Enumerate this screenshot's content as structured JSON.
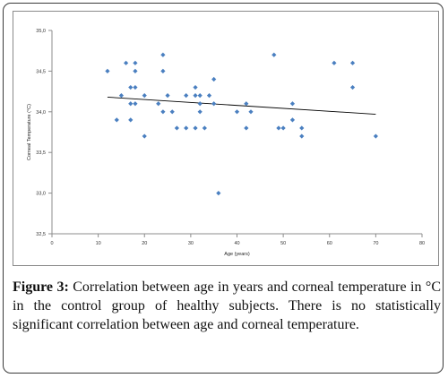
{
  "caption": {
    "label": "Figure 3:",
    "text": " Correlation between age in years and corneal temperature in °C in the control group of healthy subjects. There is no statistically significant correlation between age and corneal temperature."
  },
  "colors": {
    "point": "#4a7fc0",
    "trendline": "#000000",
    "axis": "#8c8c8c",
    "frame": "#3a3a3a"
  },
  "chart_data": {
    "type": "scatter",
    "title": "",
    "xlabel": "Age (years)",
    "ylabel": "Corneal Temperature (°C)",
    "xlim": [
      0,
      80
    ],
    "ylim": [
      32.5,
      35.0
    ],
    "x_ticks": [
      "0",
      "10",
      "20",
      "30",
      "40",
      "50",
      "60",
      "70",
      "80"
    ],
    "y_ticks": [
      "32,5",
      "33,0",
      "33,5",
      "34,0",
      "34,5",
      "35,0"
    ],
    "grid": false,
    "series": [
      {
        "points": [
          [
            12,
            34.5
          ],
          [
            14,
            33.9
          ],
          [
            15,
            34.2
          ],
          [
            16,
            34.6
          ],
          [
            17,
            34.3
          ],
          [
            17,
            33.9
          ],
          [
            17,
            34.1
          ],
          [
            18,
            34.6
          ],
          [
            18,
            34.5
          ],
          [
            18,
            34.3
          ],
          [
            18,
            34.1
          ],
          [
            20,
            34.2
          ],
          [
            20,
            33.7
          ],
          [
            23,
            34.1
          ],
          [
            24,
            34.7
          ],
          [
            24,
            34.5
          ],
          [
            24,
            34.0
          ],
          [
            25,
            34.2
          ],
          [
            26,
            34.0
          ],
          [
            27,
            33.8
          ],
          [
            29,
            34.2
          ],
          [
            29,
            33.8
          ],
          [
            31,
            34.3
          ],
          [
            31,
            33.8
          ],
          [
            31,
            34.2
          ],
          [
            32,
            34.2
          ],
          [
            32,
            34.1
          ],
          [
            32,
            34.0
          ],
          [
            33,
            33.8
          ],
          [
            34,
            34.2
          ],
          [
            35,
            34.4
          ],
          [
            35,
            34.1
          ],
          [
            36,
            33.0
          ],
          [
            40,
            34.0
          ],
          [
            42,
            34.1
          ],
          [
            42,
            33.8
          ],
          [
            43,
            34.0
          ],
          [
            48,
            34.7
          ],
          [
            49,
            33.8
          ],
          [
            50,
            33.8
          ],
          [
            52,
            34.1
          ],
          [
            52,
            33.9
          ],
          [
            54,
            33.7
          ],
          [
            54,
            33.8
          ],
          [
            61,
            34.6
          ],
          [
            65,
            34.6
          ],
          [
            65,
            34.3
          ],
          [
            70,
            33.7
          ]
        ]
      }
    ],
    "trendline": {
      "x": [
        12,
        70
      ],
      "y": [
        34.18,
        33.97
      ]
    }
  }
}
